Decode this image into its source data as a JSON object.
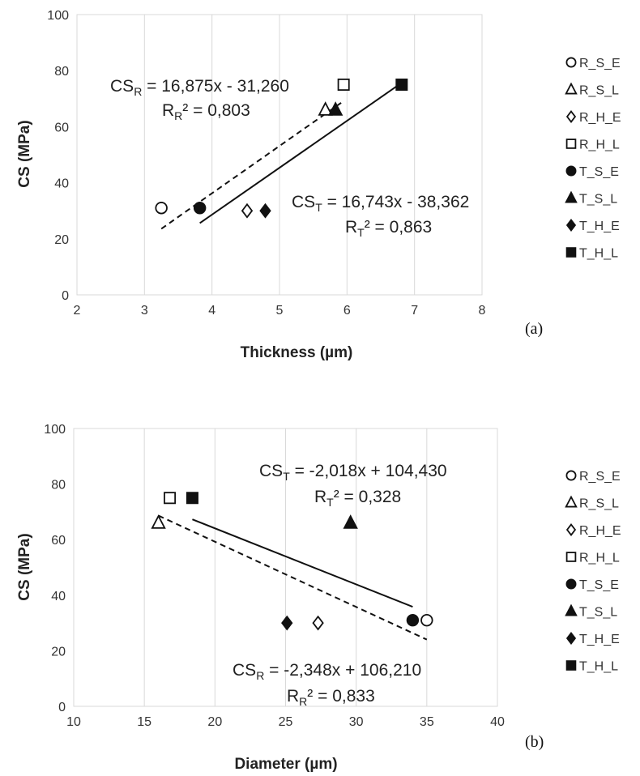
{
  "chart_data": [
    {
      "type": "scatter",
      "panel_label": "(a)",
      "xlabel": "Thickness (µm)",
      "ylabel": "CS (MPa)",
      "xlim": [
        2,
        8
      ],
      "ylim": [
        0,
        100
      ],
      "xticks": [
        2,
        3,
        4,
        5,
        6,
        7,
        8
      ],
      "yticks": [
        0,
        20,
        40,
        60,
        80,
        100
      ],
      "grid": "vertical",
      "legend_position": "right",
      "series": [
        {
          "name": "R_S_E",
          "marker": "circle-open",
          "points": [
            [
              3.25,
              31
            ]
          ]
        },
        {
          "name": "R_S_L",
          "marker": "triangle-open",
          "points": [
            [
              5.68,
              66
            ]
          ]
        },
        {
          "name": "R_H_E",
          "marker": "diamond-open",
          "points": [
            [
              4.52,
              30
            ]
          ]
        },
        {
          "name": "R_H_L",
          "marker": "square-open",
          "points": [
            [
              5.95,
              75
            ]
          ]
        },
        {
          "name": "T_S_E",
          "marker": "circle-filled",
          "points": [
            [
              3.82,
              31
            ]
          ]
        },
        {
          "name": "T_S_L",
          "marker": "triangle-filled",
          "points": [
            [
              5.83,
              66
            ]
          ]
        },
        {
          "name": "T_H_E",
          "marker": "diamond-filled",
          "points": [
            [
              4.79,
              30
            ]
          ]
        },
        {
          "name": "T_H_L",
          "marker": "square-filled",
          "points": [
            [
              6.81,
              75
            ]
          ]
        }
      ],
      "trendlines": [
        {
          "id": "R",
          "style": "dashed",
          "x_range": [
            3.25,
            5.95
          ],
          "slope": 16.875,
          "intercept": -31.26
        },
        {
          "id": "T",
          "style": "solid",
          "x_range": [
            3.82,
            6.81
          ],
          "slope": 16.743,
          "intercept": -38.362
        }
      ],
      "annotations": [
        {
          "id": "R",
          "line1_main": "CS",
          "line1_sub": "R",
          "line1_rest": " = 16,875x - 31,260",
          "line2_main": "R",
          "line2_sub": "R",
          "line2_rest": "² = 0,803"
        },
        {
          "id": "T",
          "line1_main": "CS",
          "line1_sub": "T",
          "line1_rest": " = 16,743x - 38,362",
          "line2_main": "R",
          "line2_sub": "T",
          "line2_rest": "² = 0,863"
        }
      ]
    },
    {
      "type": "scatter",
      "panel_label": "(b)",
      "xlabel": "Diameter (µm)",
      "ylabel": "CS (MPa)",
      "xlim": [
        10,
        40
      ],
      "ylim": [
        0,
        100
      ],
      "xticks": [
        10,
        15,
        20,
        25,
        30,
        35,
        40
      ],
      "yticks": [
        0,
        20,
        40,
        60,
        80,
        100
      ],
      "grid": "vertical",
      "legend_position": "right",
      "series": [
        {
          "name": "R_S_E",
          "marker": "circle-open",
          "points": [
            [
              35,
              31
            ]
          ]
        },
        {
          "name": "R_S_L",
          "marker": "triangle-open",
          "points": [
            [
              16,
              66
            ]
          ]
        },
        {
          "name": "R_H_E",
          "marker": "diamond-open",
          "points": [
            [
              27.3,
              30
            ]
          ]
        },
        {
          "name": "R_H_L",
          "marker": "square-open",
          "points": [
            [
              16.8,
              75
            ]
          ]
        },
        {
          "name": "T_S_E",
          "marker": "circle-filled",
          "points": [
            [
              34,
              31
            ]
          ]
        },
        {
          "name": "T_S_L",
          "marker": "triangle-filled",
          "points": [
            [
              29.6,
              66
            ]
          ]
        },
        {
          "name": "T_H_E",
          "marker": "diamond-filled",
          "points": [
            [
              25.1,
              30
            ]
          ]
        },
        {
          "name": "T_H_L",
          "marker": "square-filled",
          "points": [
            [
              18.4,
              75
            ]
          ]
        }
      ],
      "trendlines": [
        {
          "id": "R",
          "style": "dashed",
          "x_range": [
            16,
            35
          ],
          "slope": -2.348,
          "intercept": 106.21
        },
        {
          "id": "T",
          "style": "solid",
          "x_range": [
            18.4,
            34
          ],
          "slope": -2.018,
          "intercept": 104.43
        }
      ],
      "annotations": [
        {
          "id": "T",
          "line1_main": "CS",
          "line1_sub": "T",
          "line1_rest": " = -2,018x + 104,430",
          "line2_main": "R",
          "line2_sub": "T",
          "line2_rest": "² = 0,328"
        },
        {
          "id": "R",
          "line1_main": "CS",
          "line1_sub": "R",
          "line1_rest": " = -2,348x + 106,210",
          "line2_main": "R",
          "line2_sub": "R",
          "line2_rest": "² = 0,833"
        }
      ]
    }
  ]
}
